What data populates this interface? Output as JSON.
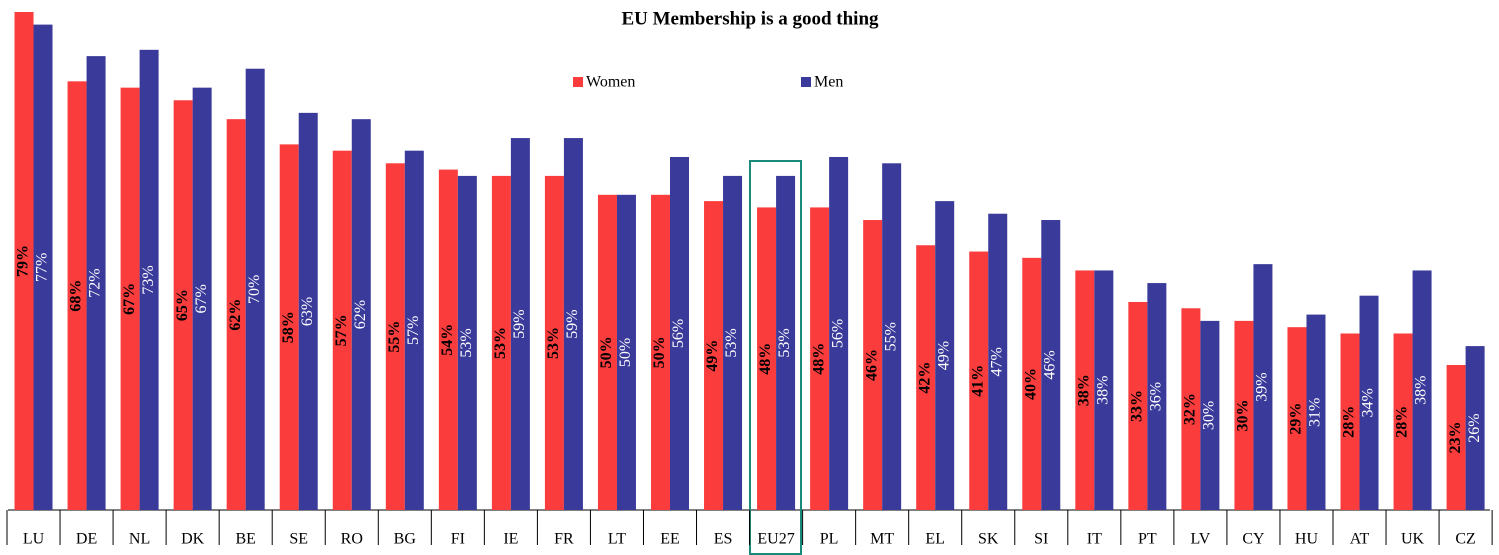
{
  "chart_data": {
    "type": "bar",
    "title": "EU Membership is a good thing",
    "categories": [
      "LU",
      "DE",
      "NL",
      "DK",
      "BE",
      "SE",
      "RO",
      "BG",
      "FI",
      "IE",
      "FR",
      "LT",
      "EE",
      "ES",
      "EU27",
      "PL",
      "MT",
      "EL",
      "SK",
      "SI",
      "IT",
      "PT",
      "LV",
      "CY",
      "HU",
      "AT",
      "UK",
      "CZ"
    ],
    "series": [
      {
        "name": "Women",
        "color": "#fa3c3c",
        "values": [
          79,
          68,
          67,
          65,
          62,
          58,
          57,
          55,
          54,
          53,
          53,
          50,
          50,
          49,
          48,
          48,
          46,
          42,
          41,
          40,
          38,
          33,
          32,
          30,
          29,
          28,
          28,
          23
        ],
        "value_labels": [
          "79%",
          "68%",
          "67%",
          "65%",
          "62%",
          "58%",
          "57%",
          "55%",
          "54%",
          "53%",
          "53%",
          "50%",
          "50%",
          "49%",
          "48%",
          "48%",
          "46%",
          "42%",
          "41%",
          "40%",
          "38%",
          "33%",
          "32%",
          "30%",
          "29%",
          "28%",
          "28%",
          "23%"
        ]
      },
      {
        "name": "Men",
        "color": "#3a3a9a",
        "values": [
          77,
          72,
          73,
          67,
          70,
          63,
          62,
          57,
          53,
          59,
          59,
          50,
          56,
          53,
          53,
          56,
          55,
          49,
          47,
          46,
          38,
          36,
          30,
          39,
          31,
          34,
          38,
          26
        ],
        "value_labels": [
          "77%",
          "72%",
          "73%",
          "67%",
          "70%",
          "63%",
          "62%",
          "57%",
          "53%",
          "59%",
          "59%",
          "50%",
          "56%",
          "53%",
          "53%",
          "56%",
          "55%",
          "49%",
          "47%",
          "46%",
          "38%",
          "36%",
          "30%",
          "39%",
          "31%",
          "34%",
          "38%",
          "26%"
        ]
      }
    ]
  }
}
